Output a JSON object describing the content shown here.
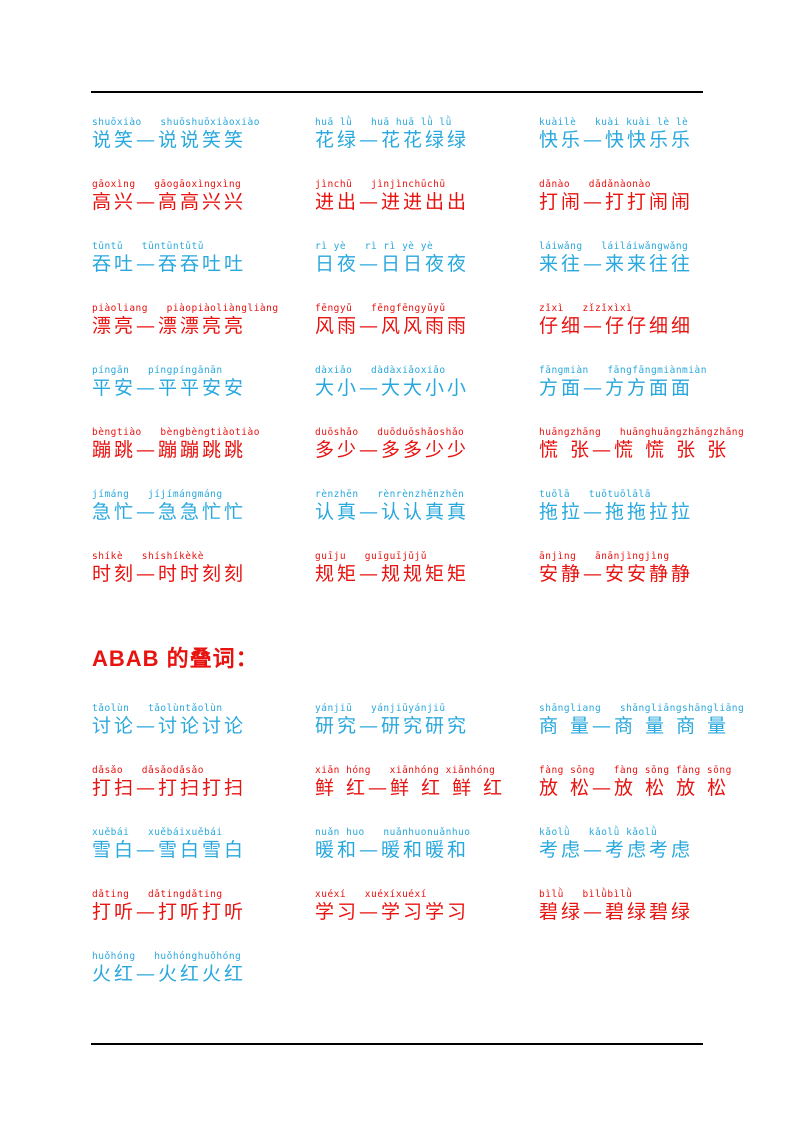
{
  "colors": {
    "blue": "#29a8dd",
    "red": "#e8120f",
    "heading_red": "#e8120f",
    "rule_black": "#000000"
  },
  "abab_heading": "ABAB 的叠词：",
  "aabb_rows": [
    {
      "color": "blue",
      "entries": [
        {
          "pinyin": "shuōxiào   shuōshuōxiàoxiào",
          "hanzi": "说笑—说说笑笑"
        },
        {
          "pinyin": "huā lǜ   huā huā lǜ lǜ",
          "hanzi": "花绿—花花绿绿"
        },
        {
          "pinyin": "kuàilè   kuài kuài lè lè",
          "hanzi": "快乐—快快乐乐"
        }
      ]
    },
    {
      "color": "red",
      "entries": [
        {
          "pinyin": "gāoxìng   gāogāoxìngxìng",
          "hanzi": "高兴—高高兴兴"
        },
        {
          "pinyin": "jìnchū   jìnjìnchūchū",
          "hanzi": "进出—进进出出"
        },
        {
          "pinyin": "dǎnào   dǎdǎnàonào",
          "hanzi": "打闹—打打闹闹"
        }
      ]
    },
    {
      "color": "blue",
      "entries": [
        {
          "pinyin": "tūntǔ   tūntūntǔtǔ",
          "hanzi": "吞吐—吞吞吐吐"
        },
        {
          "pinyin": "rì yè   rì rì yè yè",
          "hanzi": "日夜—日日夜夜"
        },
        {
          "pinyin": "láiwǎng   láiláiwǎngwǎng",
          "hanzi": "来往—来来往往"
        }
      ]
    },
    {
      "color": "red",
      "entries": [
        {
          "pinyin": "piàoliang   piàopiàoliàngliàng",
          "hanzi": "漂亮—漂漂亮亮"
        },
        {
          "pinyin": "fēngyǔ   fēngfēngyǔyǔ",
          "hanzi": "风雨—风风雨雨"
        },
        {
          "pinyin": "zǐxì   zǐzǐxìxì",
          "hanzi": "仔细—仔仔细细"
        }
      ]
    },
    {
      "color": "blue",
      "entries": [
        {
          "pinyin": "píngān   píngpíngānān",
          "hanzi": "平安—平平安安"
        },
        {
          "pinyin": "dàxiǎo   dàdàxiǎoxiǎo",
          "hanzi": "大小—大大小小"
        },
        {
          "pinyin": "fāngmiàn   fāngfāngmiànmiàn",
          "hanzi": "方面—方方面面"
        }
      ]
    },
    {
      "color": "red",
      "entries": [
        {
          "pinyin": "bèngtiào   bèngbèngtiàotiào",
          "hanzi": "蹦跳—蹦蹦跳跳"
        },
        {
          "pinyin": "duōshǎo   duōduōshǎoshǎo",
          "hanzi": "多少—多多少少"
        },
        {
          "pinyin": "huāngzhāng   huānghuāngzhāngzhāng",
          "hanzi": "慌 张—慌 慌 张 张"
        }
      ]
    },
    {
      "color": "blue",
      "entries": [
        {
          "pinyin": "jímáng   jíjímángmáng",
          "hanzi": "急忙—急急忙忙"
        },
        {
          "pinyin": "rènzhēn   rènrènzhēnzhēn",
          "hanzi": "认真—认认真真"
        },
        {
          "pinyin": "tuōlā   tuōtuōlālā",
          "hanzi": "拖拉—拖拖拉拉"
        }
      ]
    },
    {
      "color": "red",
      "entries": [
        {
          "pinyin": "shíkè   shíshíkèkè",
          "hanzi": "时刻—时时刻刻"
        },
        {
          "pinyin": "guīju   guīguījǔjǔ",
          "hanzi": "规矩—规规矩矩"
        },
        {
          "pinyin": "ānjìng   ānānjìngjìng",
          "hanzi": "安静—安安静静"
        }
      ]
    }
  ],
  "abab_rows": [
    {
      "color": "blue",
      "entries": [
        {
          "pinyin": "tǎolùn   tǎolùntǎolùn",
          "hanzi": "讨论—讨论讨论"
        },
        {
          "pinyin": "yánjiū   yánjiūyánjiū",
          "hanzi": "研究—研究研究"
        },
        {
          "pinyin": "shāngliang   shāngliāngshāngliāng",
          "hanzi": "商 量—商 量 商 量"
        }
      ]
    },
    {
      "color": "red",
      "entries": [
        {
          "pinyin": "dǎsǎo   dǎsǎodǎsǎo",
          "hanzi": "打扫—打扫打扫"
        },
        {
          "pinyin": "xiān hóng   xiānhóng xiānhóng",
          "hanzi": "鲜 红—鲜 红 鲜 红"
        },
        {
          "pinyin": "fàng sōng   fàng sōng fàng sōng",
          "hanzi": "放 松—放 松 放 松"
        }
      ]
    },
    {
      "color": "blue",
      "entries": [
        {
          "pinyin": "xuěbái   xuěbáixuěbái",
          "hanzi": "雪白—雪白雪白"
        },
        {
          "pinyin": "nuǎn huo   nuǎnhuonuǎnhuo",
          "hanzi": "暖和—暖和暖和"
        },
        {
          "pinyin": "kǎolǜ   kǎolǜ kǎolǜ",
          "hanzi": "考虑—考虑考虑"
        }
      ]
    },
    {
      "color": "red",
      "entries": [
        {
          "pinyin": "dǎting   dǎtingdǎting",
          "hanzi": "打听—打听打听"
        },
        {
          "pinyin": "xuéxí   xuéxíxuéxí",
          "hanzi": "学习—学习学习"
        },
        {
          "pinyin": "bìlǜ   bìlǜbìlǜ",
          "hanzi": "碧绿—碧绿碧绿"
        }
      ]
    },
    {
      "color": "blue",
      "entries": [
        {
          "pinyin": "huǒhóng   huǒhónghuǒhóng",
          "hanzi": "火红—火红火红"
        }
      ]
    }
  ]
}
